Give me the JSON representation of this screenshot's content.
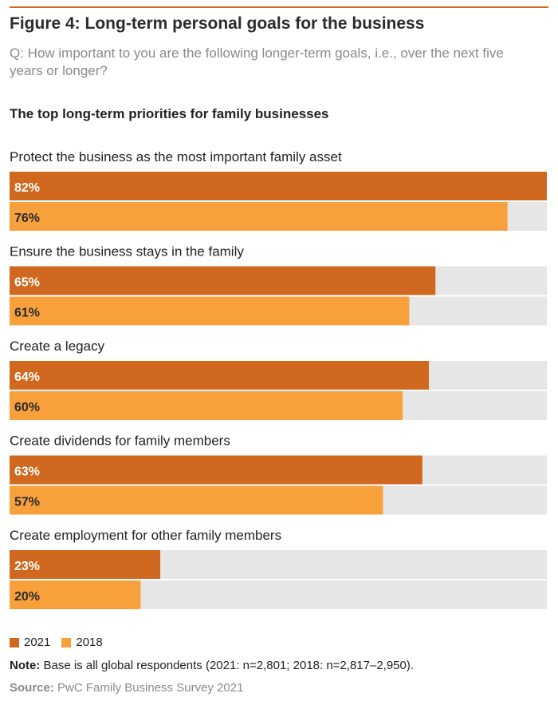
{
  "figure": {
    "title": "Figure 4: Long-term personal goals for the business",
    "question": "Q: How important to you are the following longer-term goals, i.e., over the next five years or longer?",
    "subtitle": "The top long-term priorities for family businesses"
  },
  "chart_data": {
    "type": "bar",
    "orientation": "horizontal",
    "title": "The top long-term priorities for family businesses",
    "categories": [
      "Protect the business as the most important family asset",
      "Ensure the business stays in the family",
      "Create a legacy",
      "Create dividends for family members",
      "Create employment for other family members"
    ],
    "series": [
      {
        "name": "2021",
        "values": [
          82,
          65,
          64,
          63,
          23
        ],
        "labels": [
          "82%",
          "65%",
          "64%",
          "63%",
          "23%"
        ],
        "color": "#d0691f"
      },
      {
        "name": "2018",
        "values": [
          76,
          61,
          60,
          57,
          20
        ],
        "labels": [
          "76%",
          "61%",
          "60%",
          "57%",
          "20%"
        ],
        "color": "#f8a03c"
      }
    ],
    "xlim": [
      0,
      82
    ],
    "track_color": "#e6e6e6",
    "label_color_on_dark": "#ffffff",
    "label_color_on_light": "#2b2b2b",
    "legend": "bottom-left",
    "grid": false
  },
  "notes": {
    "note_label": "Note:",
    "note_text": " Base is all global respondents (2021: n=2,801; 2018: n=2,817–2,950).",
    "source_label": "Source:",
    "source_text": " PwC Family Business Survey 2021"
  },
  "colors": {
    "accent": "#d36a1f"
  }
}
